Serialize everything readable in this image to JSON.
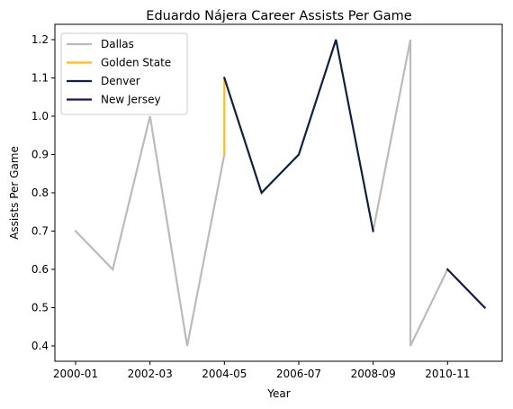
{
  "chart_data": {
    "type": "line",
    "title": "Eduardo Nájera Career Assists Per Game",
    "xlabel": "Year",
    "ylabel": "Assists Per Game",
    "x_ticks": [
      "2000-01",
      "2002-03",
      "2004-05",
      "2006-07",
      "2008-09",
      "2010-11"
    ],
    "y_ticks": [
      "0.4",
      "0.5",
      "0.6",
      "0.7",
      "0.8",
      "0.9",
      "1.0",
      "1.1",
      "1.2"
    ],
    "ylim": [
      0.36,
      1.24
    ],
    "legend_position": "upper-left",
    "grid": false,
    "seasons": [
      "2000-01",
      "2001-02",
      "2002-03",
      "2003-04",
      "2004-05",
      "2005-06",
      "2006-07",
      "2007-08",
      "2008-09",
      "2009-10",
      "2010-11",
      "2011-12"
    ],
    "series": [
      {
        "name": "Dallas",
        "color": "#BBBBBB",
        "points": [
          {
            "x": "2000-01",
            "y": 0.7
          },
          {
            "x": "2001-02",
            "y": 0.6
          },
          {
            "x": "2002-03",
            "y": 1.0
          },
          {
            "x": "2003-04",
            "y": 0.4
          },
          {
            "x": "2004-05",
            "y": 0.9
          },
          {
            "x": "2004-05",
            "y": null
          },
          {
            "x": "2008-09",
            "y": 0.7
          },
          {
            "x": "2009-10",
            "y": 1.2
          },
          {
            "x": "2009-10",
            "y": 0.4
          },
          {
            "x": "2010-11",
            "y": 0.6
          }
        ]
      },
      {
        "name": "Golden State",
        "color": "#FDB927",
        "points": [
          {
            "x": "2004-05",
            "y": 0.9
          },
          {
            "x": "2004-05",
            "y": 1.1
          }
        ]
      },
      {
        "name": "Denver",
        "color": "#0E2240",
        "points": [
          {
            "x": "2004-05",
            "y": 1.1
          },
          {
            "x": "2005-06",
            "y": 0.8
          },
          {
            "x": "2006-07",
            "y": 0.9
          },
          {
            "x": "2007-08",
            "y": 1.2
          },
          {
            "x": "2008-09",
            "y": 0.7
          }
        ]
      },
      {
        "name": "New Jersey",
        "color": "#1D1554",
        "points": [
          {
            "x": "2010-11",
            "y": 0.6
          },
          {
            "x": "2011-12",
            "y": 0.5
          }
        ]
      }
    ]
  }
}
